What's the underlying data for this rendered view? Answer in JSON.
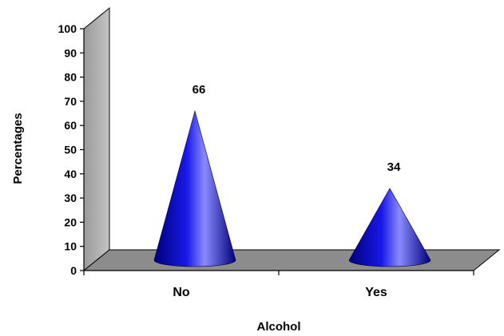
{
  "chart_data": {
    "type": "bar",
    "shape": "cone-3d",
    "categories": [
      "No",
      "Yes"
    ],
    "values": [
      66,
      34
    ],
    "data_labels": [
      "66",
      "34"
    ],
    "title": "",
    "xlabel": "Alcohol",
    "ylabel": "Percentages",
    "ylim": [
      0,
      100
    ],
    "yticks": [
      0,
      10,
      20,
      30,
      40,
      50,
      60,
      70,
      80,
      90,
      100
    ],
    "grid": false,
    "legend": "none",
    "colors": {
      "cone_dark": "#00007a",
      "cone_mid": "#1818e8",
      "cone_light": "#8a8aff",
      "wall": "#b4b4b4",
      "floor": "#8c8c8c"
    }
  }
}
